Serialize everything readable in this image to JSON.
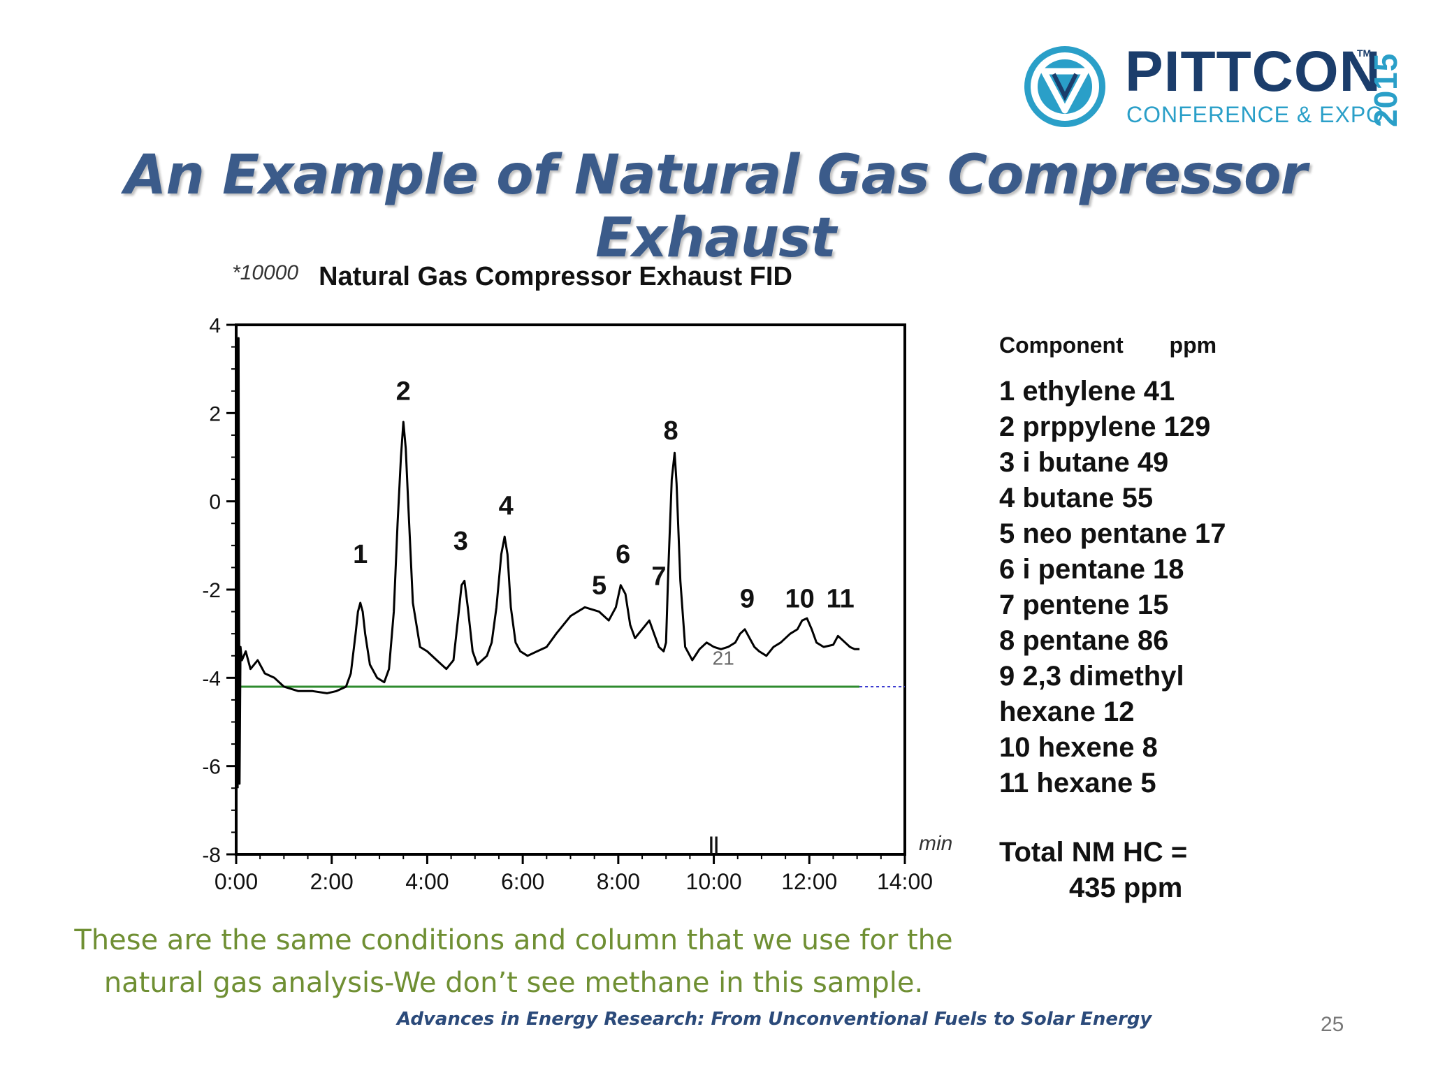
{
  "logo": {
    "name": "PITTCON",
    "trademark": "TM",
    "subtitle": "CONFERENCE & EXPO",
    "year": "2015",
    "colors": {
      "navy": "#1b3d6b",
      "cyan": "#2a9fc8"
    }
  },
  "slide": {
    "title": "An Example of Natural Gas Compressor Exhaust",
    "note": "These are the same conditions and column that we use for the natural gas analysis-We don’t see methane in this sample.",
    "footer": "Advances in Energy Research: From Unconventional Fuels to Solar Energy",
    "page_number": "25"
  },
  "legend": {
    "header_component": "Component",
    "header_ppm": "ppm",
    "items": [
      "1 ethylene  41",
      "2 prppylene 129",
      "3 i butane 49",
      "4 butane 55",
      "5 neo pentane 17",
      "6 i pentane 18",
      "7 pentene 15",
      "8 pentane 86",
      "9 2,3 dimethyl",
      "hexane 12",
      "10 hexene 8",
      "11 hexane 5"
    ],
    "total_label": "Total NM HC =",
    "total_value": "435 ppm"
  },
  "chart_data": {
    "type": "line",
    "title": "Natural Gas Compressor Exhaust FID",
    "y_scale_label": "*10000",
    "xlabel": "min",
    "ylabel": "",
    "xlim": [
      0,
      14
    ],
    "ylim": [
      -8,
      4
    ],
    "x_ticks": [
      0,
      2,
      4,
      6,
      8,
      10,
      12,
      14
    ],
    "x_tick_labels": [
      "0:00",
      "2:00",
      "4:00",
      "6:00",
      "8:00",
      "10:00",
      "12:00",
      "14:00"
    ],
    "y_ticks": [
      4,
      2,
      0,
      -2,
      -4,
      -6,
      -8
    ],
    "y_tick_labels": [
      "4",
      "2",
      "0",
      "-2",
      "-4",
      "-6",
      "-8"
    ],
    "grid": false,
    "colors": {
      "signal": "#000000",
      "baseline": "#2e8b2e",
      "baseline_extension": "#3b3bd0"
    },
    "series": [
      {
        "values_x": [
          0.03,
          0.05,
          0.07,
          0.09,
          0.12,
          0.2,
          0.3,
          0.45,
          0.6,
          0.8,
          1.0,
          1.3,
          1.6,
          1.9,
          2.1,
          2.3,
          2.4,
          2.5,
          2.55,
          2.6,
          2.65,
          2.7,
          2.8,
          2.95,
          3.1,
          3.2,
          3.3,
          3.38,
          3.45,
          3.5,
          3.55,
          3.6,
          3.7,
          3.85,
          4.0,
          4.2,
          4.4,
          4.55,
          4.65,
          4.72,
          4.78,
          4.85,
          4.95,
          5.05,
          5.15,
          5.25,
          5.35,
          5.45,
          5.55,
          5.62,
          5.68,
          5.75,
          5.85,
          5.95,
          6.1,
          6.3,
          6.5,
          6.7,
          7.0,
          7.3,
          7.6,
          7.8,
          7.95,
          8.05,
          8.15,
          8.25,
          8.35,
          8.5,
          8.65,
          8.75,
          8.85,
          8.95,
          9.0,
          9.05,
          9.12,
          9.18,
          9.22,
          9.3,
          9.4,
          9.55,
          9.7,
          9.85,
          10.0,
          10.15,
          10.3,
          10.45,
          10.55,
          10.65,
          10.75,
          10.85,
          10.95,
          11.1,
          11.25,
          11.4,
          11.6,
          11.75,
          11.85,
          11.95,
          12.05,
          12.15,
          12.3,
          12.5,
          12.6,
          12.75,
          12.85,
          12.95,
          13.05
        ],
        "values_y": [
          -6.5,
          3.7,
          -6.4,
          -3.3,
          -3.6,
          -3.4,
          -3.8,
          -3.6,
          -3.9,
          -4.0,
          -4.2,
          -4.3,
          -4.3,
          -4.35,
          -4.3,
          -4.2,
          -3.9,
          -3.0,
          -2.5,
          -2.3,
          -2.5,
          -3.0,
          -3.7,
          -4.0,
          -4.1,
          -3.8,
          -2.5,
          -0.5,
          1.0,
          1.8,
          1.2,
          0.0,
          -2.3,
          -3.3,
          -3.4,
          -3.6,
          -3.8,
          -3.6,
          -2.6,
          -1.9,
          -1.8,
          -2.4,
          -3.4,
          -3.7,
          -3.6,
          -3.5,
          -3.2,
          -2.4,
          -1.2,
          -0.8,
          -1.2,
          -2.4,
          -3.2,
          -3.4,
          -3.5,
          -3.4,
          -3.3,
          -3.0,
          -2.6,
          -2.4,
          -2.5,
          -2.7,
          -2.4,
          -1.9,
          -2.1,
          -2.8,
          -3.1,
          -2.9,
          -2.7,
          -3.0,
          -3.3,
          -3.4,
          -3.2,
          -1.5,
          0.5,
          1.1,
          0.4,
          -1.8,
          -3.3,
          -3.6,
          -3.35,
          -3.2,
          -3.3,
          -3.35,
          -3.3,
          -3.2,
          -3.0,
          -2.9,
          -3.1,
          -3.3,
          -3.4,
          -3.5,
          -3.3,
          -3.2,
          -3.0,
          -2.9,
          -2.7,
          -2.65,
          -2.9,
          -3.2,
          -3.3,
          -3.25,
          -3.05,
          -3.2,
          -3.3,
          -3.35,
          -3.35
        ]
      }
    ],
    "baseline": {
      "y": -4.2,
      "x_start": 0.05,
      "x_end": 13.05,
      "dashed_end": 14.0
    },
    "peak_labels": [
      {
        "label": "1",
        "x": 2.6,
        "y": -1.4
      },
      {
        "label": "2",
        "x": 3.5,
        "y": 2.3
      },
      {
        "label": "3",
        "x": 4.7,
        "y": -1.1
      },
      {
        "label": "4",
        "x": 5.65,
        "y": -0.3
      },
      {
        "label": "5",
        "x": 7.6,
        "y": -2.1
      },
      {
        "label": "6",
        "x": 8.1,
        "y": -1.4
      },
      {
        "label": "7",
        "x": 8.85,
        "y": -1.9
      },
      {
        "label": "8",
        "x": 9.1,
        "y": 1.4
      },
      {
        "label": "9",
        "x": 10.7,
        "y": -2.4
      },
      {
        "label": "10",
        "x": 11.8,
        "y": -2.4
      },
      {
        "label": "11",
        "x": 12.65,
        "y": -2.4
      }
    ],
    "small_annotations": [
      {
        "label": "21",
        "x": 10.2,
        "y": -3.7
      }
    ],
    "markers": [
      {
        "label": "||",
        "x": 10.0,
        "y": -7.9
      }
    ]
  }
}
